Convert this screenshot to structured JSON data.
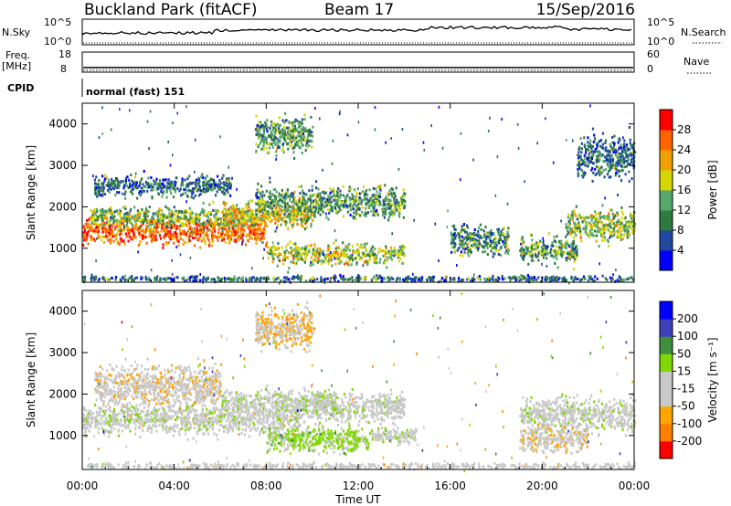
{
  "header": {
    "station": "Buckland Park (fitACF)",
    "beam": "Beam 17",
    "date": "15/Sep/2016"
  },
  "strip_panels": {
    "nsky_label": "N.Sky",
    "nsky_ticks": [
      "10^5",
      "10^0"
    ],
    "nsearch_label": "N.Search",
    "nsearch_ticks": [
      "10^5",
      "10^0"
    ],
    "freq_label": "Freq.",
    "freq_unit": "[MHz]",
    "freq_ticks": [
      "18",
      "8"
    ],
    "nave_label": "Nave",
    "nave_ticks": [
      "60",
      "0"
    ],
    "cpid_label": "CPID",
    "cpid_value": "normal (fast) 151"
  },
  "colors": {
    "power": [
      "#0000ff",
      "#1f4aa0",
      "#2f7a40",
      "#56a86a",
      "#d7d700",
      "#f0a000",
      "#ff6400",
      "#ff0000"
    ],
    "velocity": [
      "#ff0000",
      "#ff7f00",
      "#ffa500",
      "#c8c8c8",
      "#c8c8c8",
      "#7fd800",
      "#3f8f3f",
      "#3f3fb8",
      "#0000ff"
    ]
  },
  "chart_data": [
    {
      "type": "heatmap",
      "title": "Power",
      "xlabel": "",
      "ylabel": "Slant Range [km]",
      "x_ticks": [
        "00:00",
        "04:00",
        "08:00",
        "12:00",
        "16:00",
        "20:00",
        "00:00"
      ],
      "x_range_hours": [
        0,
        24
      ],
      "y_ticks": [
        "1000",
        "2000",
        "3000",
        "4000"
      ],
      "y_range_km": [
        180,
        4500
      ],
      "colorbar": {
        "label": "Power [dB]",
        "ticks": [
          "4",
          "8",
          "12",
          "16",
          "20",
          "24",
          "28"
        ],
        "range": [
          0,
          30
        ]
      },
      "echo_regions": [
        {
          "x_start": 0.0,
          "x_end": 8.0,
          "y_center": 1400,
          "y_spread": 250,
          "value": 24
        },
        {
          "x_start": 0.3,
          "x_end": 7.5,
          "y_center": 1750,
          "y_spread": 200,
          "value": 14
        },
        {
          "x_start": 0.5,
          "x_end": 6.5,
          "y_center": 2500,
          "y_spread": 200,
          "value": 8
        },
        {
          "x_start": 6.0,
          "x_end": 10.0,
          "y_center": 1800,
          "y_spread": 250,
          "value": 19
        },
        {
          "x_start": 7.5,
          "x_end": 10.0,
          "y_center": 3700,
          "y_spread": 350,
          "value": 12
        },
        {
          "x_start": 7.5,
          "x_end": 14.0,
          "y_center": 2100,
          "y_spread": 300,
          "value": 12
        },
        {
          "x_start": 8.0,
          "x_end": 14.0,
          "y_center": 850,
          "y_spread": 200,
          "value": 16
        },
        {
          "x_start": 16.0,
          "x_end": 18.5,
          "y_center": 1200,
          "y_spread": 300,
          "value": 10
        },
        {
          "x_start": 19.0,
          "x_end": 21.5,
          "y_center": 950,
          "y_spread": 250,
          "value": 12
        },
        {
          "x_start": 21.0,
          "x_end": 24.0,
          "y_center": 1550,
          "y_spread": 300,
          "value": 15
        },
        {
          "x_start": 21.5,
          "x_end": 24.0,
          "y_center": 3200,
          "y_spread": 400,
          "value": 8
        },
        {
          "x_start": 0.0,
          "x_end": 24.0,
          "y_center": 260,
          "y_spread": 60,
          "value": 8
        }
      ]
    },
    {
      "type": "heatmap",
      "title": "Velocity",
      "xlabel": "Time UT",
      "ylabel": "Slant Range [km]",
      "x_ticks": [
        "00:00",
        "04:00",
        "08:00",
        "12:00",
        "16:00",
        "20:00",
        "00:00"
      ],
      "x_range_hours": [
        0,
        24
      ],
      "y_ticks": [
        "1000",
        "2000",
        "3000",
        "4000"
      ],
      "y_range_km": [
        180,
        4500
      ],
      "colorbar": {
        "label": "Velocity [m s⁻¹]",
        "ticks": [
          "-200",
          "-100",
          "-50",
          "-15",
          "15",
          "50",
          "100",
          "200"
        ],
        "range": [
          -250,
          250
        ]
      },
      "echo_regions": [
        {
          "x_start": 0.0,
          "x_end": 9.5,
          "y_center": 1400,
          "y_spread": 300,
          "value": 0
        },
        {
          "x_start": 0.5,
          "x_end": 6.0,
          "y_center": 2200,
          "y_spread": 400,
          "value": -60
        },
        {
          "x_start": 6.0,
          "x_end": 11.0,
          "y_center": 1800,
          "y_spread": 250,
          "value": 5
        },
        {
          "x_start": 7.5,
          "x_end": 10.0,
          "y_center": 3600,
          "y_spread": 400,
          "value": -80
        },
        {
          "x_start": 9.5,
          "x_end": 14.0,
          "y_center": 1700,
          "y_spread": 300,
          "value": 0
        },
        {
          "x_start": 8.0,
          "x_end": 12.5,
          "y_center": 900,
          "y_spread": 250,
          "value": 40
        },
        {
          "x_start": 12.5,
          "x_end": 14.5,
          "y_center": 1000,
          "y_spread": 150,
          "value": 0
        },
        {
          "x_start": 19.0,
          "x_end": 24.0,
          "y_center": 1500,
          "y_spread": 350,
          "value": 0
        },
        {
          "x_start": 19.0,
          "x_end": 22.0,
          "y_center": 900,
          "y_spread": 250,
          "value": -60
        },
        {
          "x_start": 0.0,
          "x_end": 24.0,
          "y_center": 260,
          "y_spread": 60,
          "value": -30
        }
      ]
    }
  ]
}
